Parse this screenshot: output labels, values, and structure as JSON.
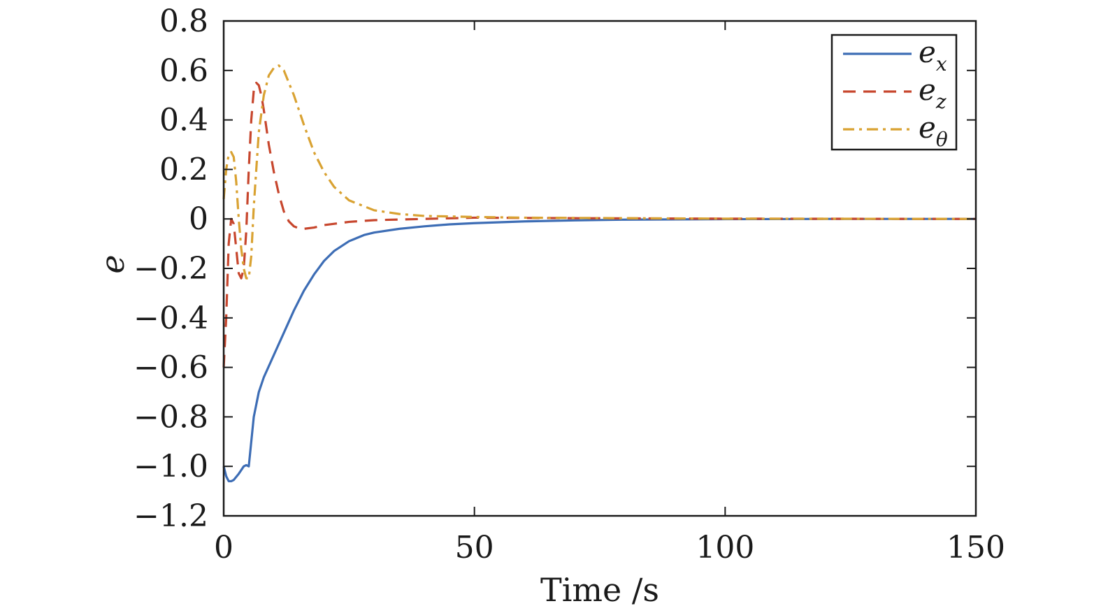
{
  "chart_data": {
    "type": "line",
    "title": "",
    "xlabel": "Time /s",
    "ylabel": "e",
    "xlim": [
      0,
      150
    ],
    "ylim": [
      -1.2,
      0.8
    ],
    "xticks": [
      0,
      50,
      100,
      150
    ],
    "xtick_labels": [
      "0",
      "50",
      "100",
      "150"
    ],
    "yticks": [
      0.8,
      0.6,
      0.4,
      0.2,
      0,
      -0.2,
      -0.4,
      -0.6,
      -0.8,
      -1.0,
      -1.2
    ],
    "ytick_labels": [
      "0.8",
      "0.6",
      "0.4",
      "0.2",
      "0",
      "−0.2",
      "−0.4",
      "−0.6",
      "−0.8",
      "−1.0",
      "−1.2"
    ],
    "grid": false,
    "legend_position": "top-right",
    "series": [
      {
        "name": "e_x",
        "label_base": "e",
        "label_sub": "x",
        "color": "#3d6db5",
        "dash": "solid",
        "x": [
          0,
          0.5,
          1,
          1.5,
          2,
          3,
          4,
          4.5,
          5,
          5.5,
          6,
          7,
          8,
          10,
          12,
          14,
          16,
          18,
          20,
          22,
          25,
          28,
          30,
          35,
          40,
          45,
          50,
          60,
          70,
          80,
          100,
          120,
          150
        ],
        "y": [
          -1.0,
          -1.04,
          -1.06,
          -1.06,
          -1.055,
          -1.03,
          -1.0,
          -0.995,
          -1.0,
          -0.9,
          -0.8,
          -0.7,
          -0.64,
          -0.55,
          -0.46,
          -0.37,
          -0.29,
          -0.225,
          -0.17,
          -0.13,
          -0.09,
          -0.065,
          -0.055,
          -0.04,
          -0.03,
          -0.022,
          -0.017,
          -0.01,
          -0.006,
          -0.003,
          -0.001,
          0.0,
          0.0
        ]
      },
      {
        "name": "e_z",
        "label_base": "e",
        "label_sub": "z",
        "color": "#c7462d",
        "dash": "dashed",
        "x": [
          0,
          0.5,
          1,
          1.5,
          2,
          2.5,
          3,
          3.5,
          4,
          4.5,
          5,
          5.5,
          6,
          6.5,
          7,
          7.5,
          8,
          9,
          10,
          11,
          12,
          13,
          14,
          15,
          16,
          18,
          20,
          25,
          30,
          40,
          50,
          70,
          100,
          150
        ],
        "y": [
          -0.6,
          -0.4,
          -0.1,
          0.0,
          -0.02,
          -0.12,
          -0.22,
          -0.24,
          -0.2,
          -0.05,
          0.2,
          0.4,
          0.52,
          0.55,
          0.54,
          0.5,
          0.44,
          0.3,
          0.19,
          0.1,
          0.03,
          -0.01,
          -0.03,
          -0.038,
          -0.04,
          -0.035,
          -0.025,
          -0.012,
          -0.005,
          0.0,
          0.005,
          0.003,
          0.001,
          0.0
        ]
      },
      {
        "name": "e_theta",
        "label_base": "e",
        "label_sub": "θ",
        "color": "#d9a232",
        "dash": "dashdot",
        "x": [
          0,
          0.5,
          1,
          1.5,
          2,
          2.5,
          3,
          3.5,
          4,
          4.5,
          5,
          5.5,
          6,
          7,
          8,
          9,
          10,
          11,
          12,
          13,
          14,
          16,
          18,
          20,
          22,
          25,
          30,
          35,
          40,
          50,
          60,
          70,
          80,
          100,
          150
        ],
        "y": [
          0.08,
          0.2,
          0.26,
          0.27,
          0.25,
          0.15,
          0.0,
          -0.12,
          -0.2,
          -0.24,
          -0.24,
          -0.15,
          0.05,
          0.35,
          0.5,
          0.58,
          0.61,
          0.62,
          0.6,
          0.55,
          0.5,
          0.38,
          0.27,
          0.19,
          0.13,
          0.075,
          0.035,
          0.02,
          0.012,
          0.008,
          0.005,
          0.004,
          0.003,
          0.001,
          0.0
        ]
      }
    ]
  }
}
